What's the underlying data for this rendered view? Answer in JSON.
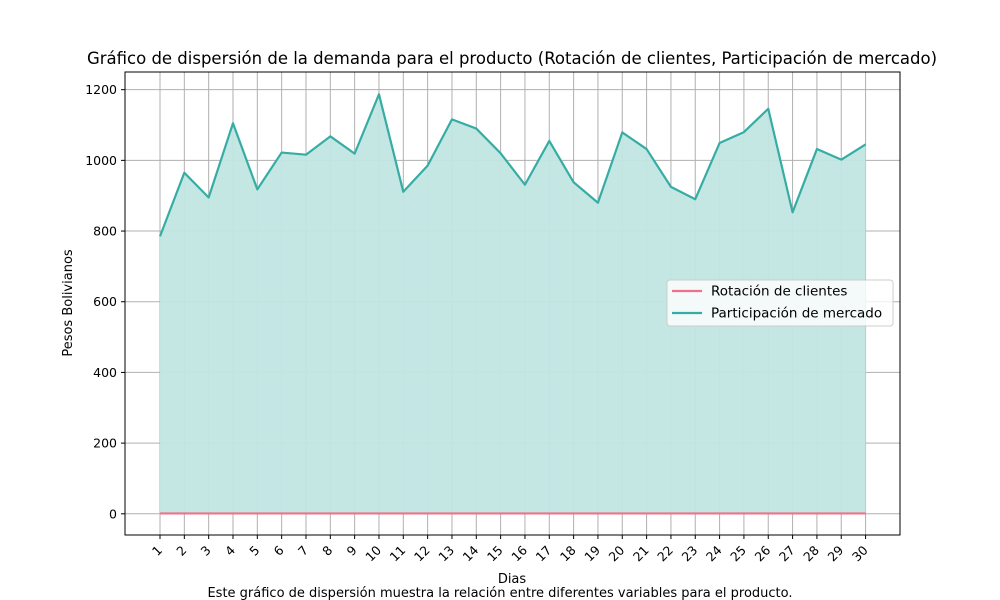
{
  "chart_data": {
    "type": "area",
    "title": "Gráfico de dispersión de la demanda para el producto (Rotación de clientes, Participación de mercado)",
    "xlabel": "Dias",
    "ylabel": "Pesos Bolivianos",
    "caption": "Este gráfico de dispersión muestra la relación entre diferentes variables para el producto.",
    "categories": [
      "1",
      "2",
      "3",
      "4",
      "5",
      "6",
      "7",
      "8",
      "9",
      "10",
      "11",
      "12",
      "13",
      "14",
      "15",
      "16",
      "17",
      "18",
      "19",
      "20",
      "21",
      "22",
      "23",
      "24",
      "25",
      "26",
      "27",
      "28",
      "29",
      "30"
    ],
    "ylim": [
      -60,
      1250
    ],
    "yticks": [
      0,
      200,
      400,
      600,
      800,
      1000,
      1200
    ],
    "grid": true,
    "legend_position": "center-right",
    "series": [
      {
        "name": "Rotación de clientes",
        "color": "#f0718a",
        "fill": false,
        "values": [
          1,
          1,
          1,
          1,
          1,
          1,
          1,
          1,
          1,
          1,
          1,
          1,
          1,
          1,
          1,
          1,
          1,
          1,
          1,
          1,
          1,
          1,
          1,
          1,
          1,
          1,
          1,
          1,
          1,
          1
        ]
      },
      {
        "name": "Participación de mercado",
        "color": "#36ada4",
        "fill": true,
        "fill_color": "#c2e6e3",
        "values": [
          785,
          965,
          895,
          1105,
          918,
          1022,
          1016,
          1068,
          1019,
          1187,
          911,
          985,
          1116,
          1090,
          1020,
          931,
          1055,
          938,
          880,
          1079,
          1032,
          925,
          890,
          1049,
          1080,
          1146,
          853,
          1032,
          1002,
          1045
        ]
      }
    ]
  }
}
